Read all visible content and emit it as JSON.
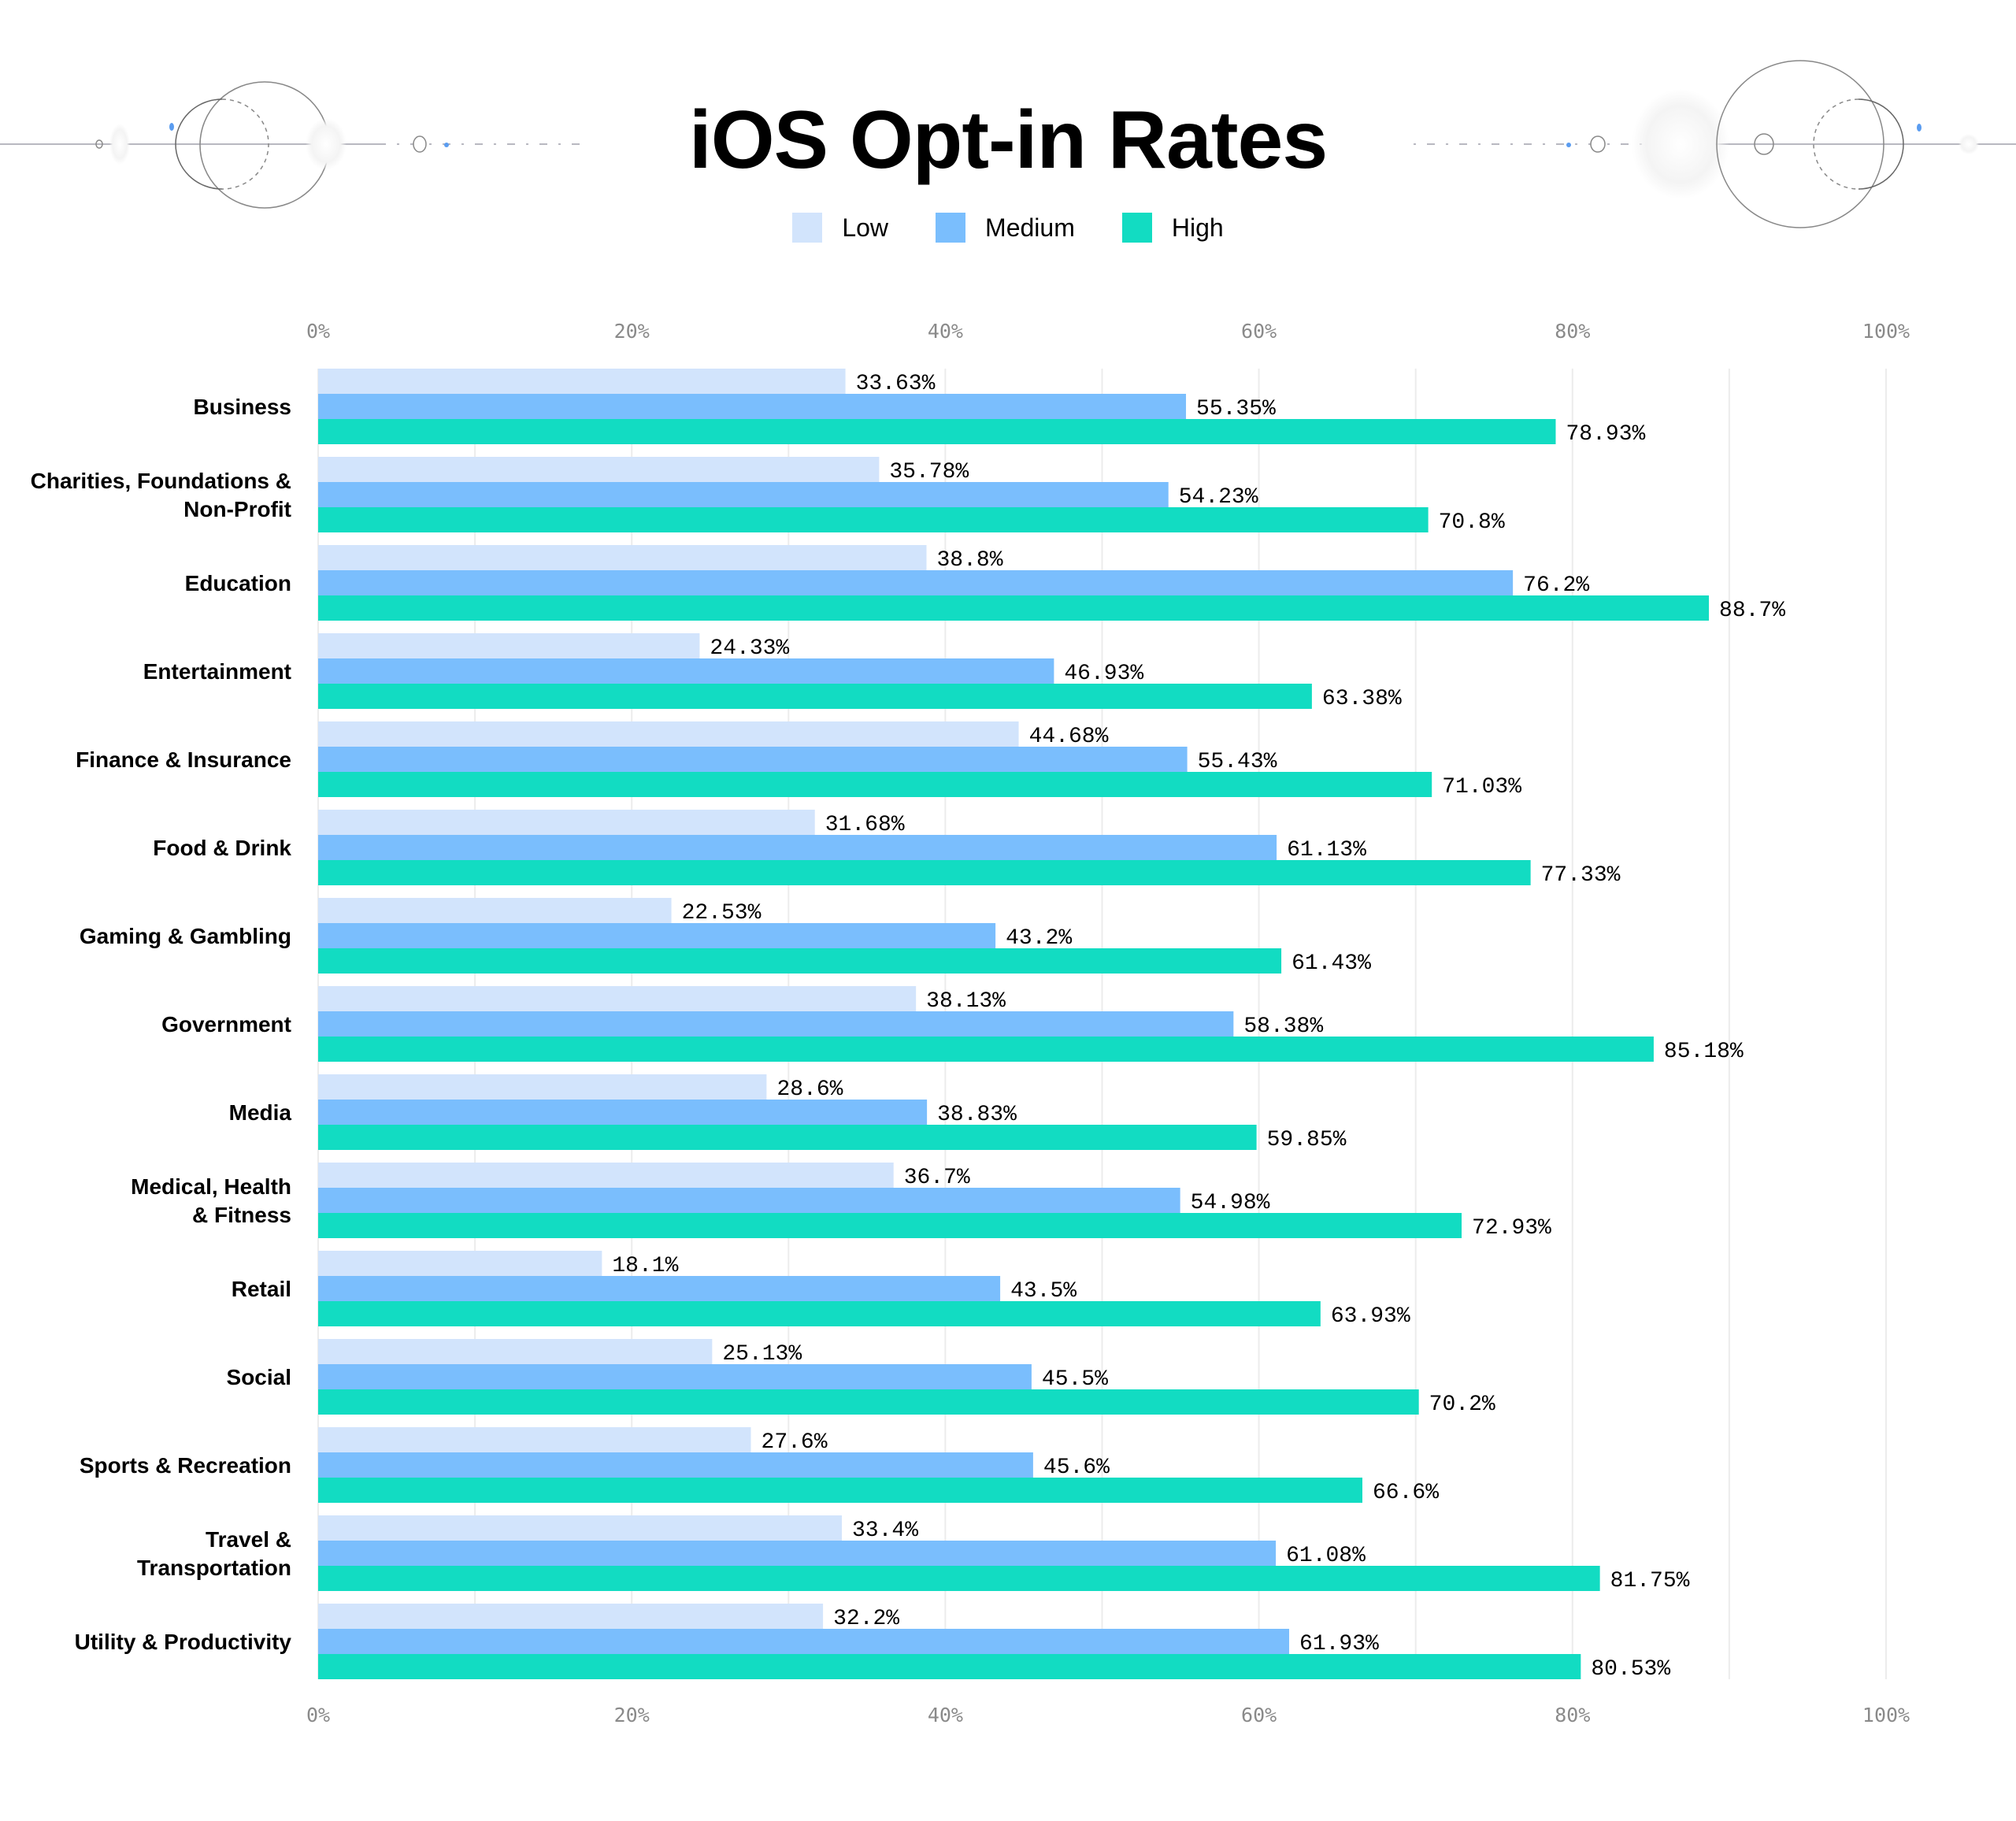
{
  "chart_data": {
    "type": "bar",
    "orientation": "horizontal",
    "title": "iOS Opt-in Rates",
    "xlabel": "",
    "ylabel": "",
    "xlim": [
      0,
      100
    ],
    "x_ticks": [
      "0%",
      "20%",
      "40%",
      "60%",
      "80%",
      "100%"
    ],
    "x_tick_values": [
      0,
      20,
      40,
      60,
      80,
      100
    ],
    "gridlines_every": 10,
    "grid": true,
    "legend_position": "top-center",
    "categories": [
      "Business",
      "Charities, Foundations &\nNon-Profit",
      "Education",
      "Entertainment",
      "Finance & Insurance",
      "Food & Drink",
      "Gaming & Gambling",
      "Government",
      "Media",
      "Medical, Health\n& Fitness",
      "Retail",
      "Social",
      "Sports & Recreation",
      "Travel &\nTransportation",
      "Utility & Productivity"
    ],
    "series": [
      {
        "name": "Low",
        "color": "#d2e4fc",
        "values": [
          33.63,
          35.78,
          38.8,
          24.33,
          44.68,
          31.68,
          22.53,
          38.13,
          28.6,
          36.7,
          18.1,
          25.13,
          27.6,
          33.4,
          32.2
        ],
        "labels": [
          "33.63%",
          "35.78%",
          "38.8%",
          "24.33%",
          "44.68%",
          "31.68%",
          "22.53%",
          "38.13%",
          "28.6%",
          "36.7%",
          "18.1%",
          "25.13%",
          "27.6%",
          "33.4%",
          "32.2%"
        ]
      },
      {
        "name": "Medium",
        "color": "#7abefd",
        "values": [
          55.35,
          54.23,
          76.2,
          46.93,
          55.43,
          61.13,
          43.2,
          58.38,
          38.83,
          54.98,
          43.5,
          45.5,
          45.6,
          61.08,
          61.93
        ],
        "labels": [
          "55.35%",
          "54.23%",
          "76.2%",
          "46.93%",
          "55.43%",
          "61.13%",
          "43.2%",
          "58.38%",
          "38.83%",
          "54.98%",
          "43.5%",
          "45.5%",
          "45.6%",
          "61.08%",
          "61.93%"
        ]
      },
      {
        "name": "High",
        "color": "#12dcc2",
        "values": [
          78.93,
          70.8,
          88.7,
          63.38,
          71.03,
          77.33,
          61.43,
          85.18,
          59.85,
          72.93,
          63.93,
          70.2,
          66.6,
          81.75,
          80.53
        ],
        "labels": [
          "78.93%",
          "70.8%",
          "88.7%",
          "63.38%",
          "71.03%",
          "77.33%",
          "61.43%",
          "85.18%",
          "59.85%",
          "72.93%",
          "63.93%",
          "70.2%",
          "66.6%",
          "81.75%",
          "80.53%"
        ]
      }
    ]
  },
  "legend": {
    "items": [
      {
        "label": "Low",
        "color": "#d2e4fc"
      },
      {
        "label": "Medium",
        "color": "#7abefd"
      },
      {
        "label": "High",
        "color": "#12dcc2"
      }
    ]
  },
  "colors": {
    "gridline": "#ececec",
    "tick_text": "#8a8a8a",
    "decor_line": "#b8b8c0",
    "decor_accent": "#5a9cf0"
  }
}
